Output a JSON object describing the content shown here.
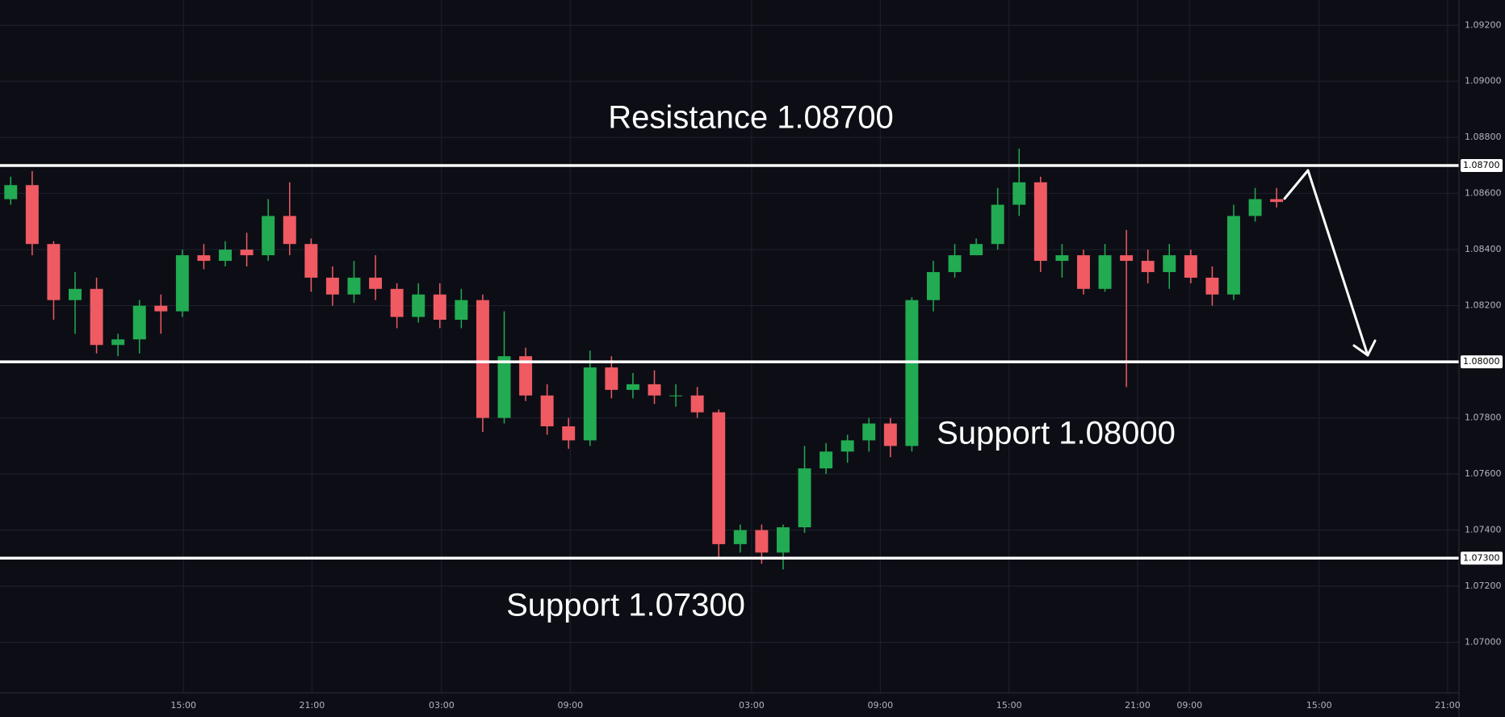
{
  "chart_data": {
    "type": "candlestick",
    "up_color": "#22ab52",
    "down_color": "#ef5a63",
    "grid": true,
    "xlim": [
      0,
      68
    ],
    "xticks": [
      {
        "value": 8.55,
        "label": "15:00"
      },
      {
        "value": 14.54,
        "label": "21:00"
      },
      {
        "value": 20.58,
        "label": "03:00"
      },
      {
        "value": 26.58,
        "label": "09:00"
      },
      {
        "value": 35.03,
        "label": "03:00"
      },
      {
        "value": 41.03,
        "label": "09:00"
      },
      {
        "value": 47.03,
        "label": "15:00"
      },
      {
        "value": 53.02,
        "label": "21:00"
      },
      {
        "value": 55.44,
        "label": "09:00"
      },
      {
        "value": 61.48,
        "label": "15:00"
      },
      {
        "value": 67.47,
        "label": "21:00"
      }
    ],
    "ylim": [
      1.0682,
      1.0929
    ],
    "yticks": [
      {
        "value": 1.07,
        "label": "1.07000"
      },
      {
        "value": 1.072,
        "label": "1.07200"
      },
      {
        "value": 1.074,
        "label": "1.07400"
      },
      {
        "value": 1.076,
        "label": "1.07600"
      },
      {
        "value": 1.078,
        "label": "1.07800"
      },
      {
        "value": 1.082,
        "label": "1.08200"
      },
      {
        "value": 1.084,
        "label": "1.08400"
      },
      {
        "value": 1.086,
        "label": "1.08600"
      },
      {
        "value": 1.088,
        "label": "1.08800"
      },
      {
        "value": 1.09,
        "label": "1.09000"
      },
      {
        "value": 1.092,
        "label": "1.09200"
      }
    ],
    "levels": [
      {
        "value": 1.087,
        "label": "1.08700"
      },
      {
        "value": 1.08,
        "label": "1.08000"
      },
      {
        "value": 1.073,
        "label": "1.07300"
      }
    ],
    "annotations": [
      "Resistance 1.08700",
      "Support 1.08000",
      "Support 1.07300"
    ],
    "open": [
      1.0858,
      1.0863,
      1.0842,
      1.0822,
      1.0826,
      1.0806,
      1.0808,
      1.082,
      1.0818,
      1.0838,
      1.0836,
      1.084,
      1.0838,
      1.0852,
      1.0842,
      1.083,
      1.0824,
      1.083,
      1.0826,
      1.0816,
      1.0824,
      1.0815,
      1.0822,
      1.078,
      1.0802,
      1.0788,
      1.0777,
      1.0772,
      1.0798,
      1.079,
      1.0792,
      1.0788,
      1.0788,
      1.0782,
      1.0735,
      1.074,
      1.0732,
      1.0741,
      1.0762,
      1.0768,
      1.0772,
      1.0778,
      1.077,
      1.0822,
      1.0832,
      1.0838,
      1.0842,
      1.0856,
      1.0864,
      1.0836,
      1.0838,
      1.0826,
      1.0838,
      1.0836,
      1.0832,
      1.0838,
      1.083,
      1.0824,
      1.0852,
      1.0858
    ],
    "high": [
      1.0866,
      1.0868,
      1.0843,
      1.0832,
      1.083,
      1.081,
      1.0822,
      1.0824,
      1.084,
      1.0842,
      1.0843,
      1.0846,
      1.0858,
      1.0864,
      1.0844,
      1.0834,
      1.0836,
      1.0838,
      1.0828,
      1.0828,
      1.0828,
      1.0826,
      1.0824,
      1.0818,
      1.0805,
      1.0792,
      1.078,
      1.0804,
      1.0802,
      1.0796,
      1.0797,
      1.0792,
      1.0791,
      1.0783,
      1.0742,
      1.0742,
      1.0742,
      1.077,
      1.0771,
      1.0774,
      1.078,
      1.078,
      1.0823,
      1.0836,
      1.0842,
      1.0844,
      1.0862,
      1.0876,
      1.0866,
      1.0842,
      1.084,
      1.0842,
      1.0847,
      1.084,
      1.0842,
      1.084,
      1.0834,
      1.0856,
      1.0862,
      1.0862
    ],
    "low": [
      1.0856,
      1.0838,
      1.0815,
      1.081,
      1.0803,
      1.0802,
      1.0803,
      1.081,
      1.0816,
      1.0833,
      1.0834,
      1.0834,
      1.0836,
      1.0838,
      1.0825,
      1.082,
      1.0821,
      1.0822,
      1.0812,
      1.0814,
      1.0812,
      1.0812,
      1.0775,
      1.0778,
      1.0786,
      1.0774,
      1.0769,
      1.077,
      1.0787,
      1.0787,
      1.0785,
      1.0784,
      1.078,
      1.073,
      1.0732,
      1.0728,
      1.0726,
      1.0739,
      1.076,
      1.0764,
      1.0768,
      1.0766,
      1.0768,
      1.0818,
      1.083,
      1.0838,
      1.084,
      1.0852,
      1.0832,
      1.083,
      1.0824,
      1.0825,
      1.0791,
      1.0828,
      1.0826,
      1.0828,
      1.082,
      1.0822,
      1.085,
      1.0855
    ],
    "close": [
      1.0863,
      1.0842,
      1.0822,
      1.0826,
      1.0806,
      1.0808,
      1.082,
      1.0818,
      1.0838,
      1.0836,
      1.084,
      1.0838,
      1.0852,
      1.0842,
      1.083,
      1.0824,
      1.083,
      1.0826,
      1.0816,
      1.0824,
      1.0815,
      1.0822,
      1.078,
      1.0802,
      1.0788,
      1.0777,
      1.0772,
      1.0798,
      1.079,
      1.0792,
      1.0788,
      1.0788,
      1.0782,
      1.0735,
      1.074,
      1.0732,
      1.0741,
      1.0762,
      1.0768,
      1.0772,
      1.0778,
      1.077,
      1.0822,
      1.0832,
      1.0838,
      1.0842,
      1.0856,
      1.0864,
      1.0836,
      1.0838,
      1.0826,
      1.0838,
      1.0836,
      1.0832,
      1.0838,
      1.083,
      1.0824,
      1.0852,
      1.0858,
      1.0857
    ]
  }
}
